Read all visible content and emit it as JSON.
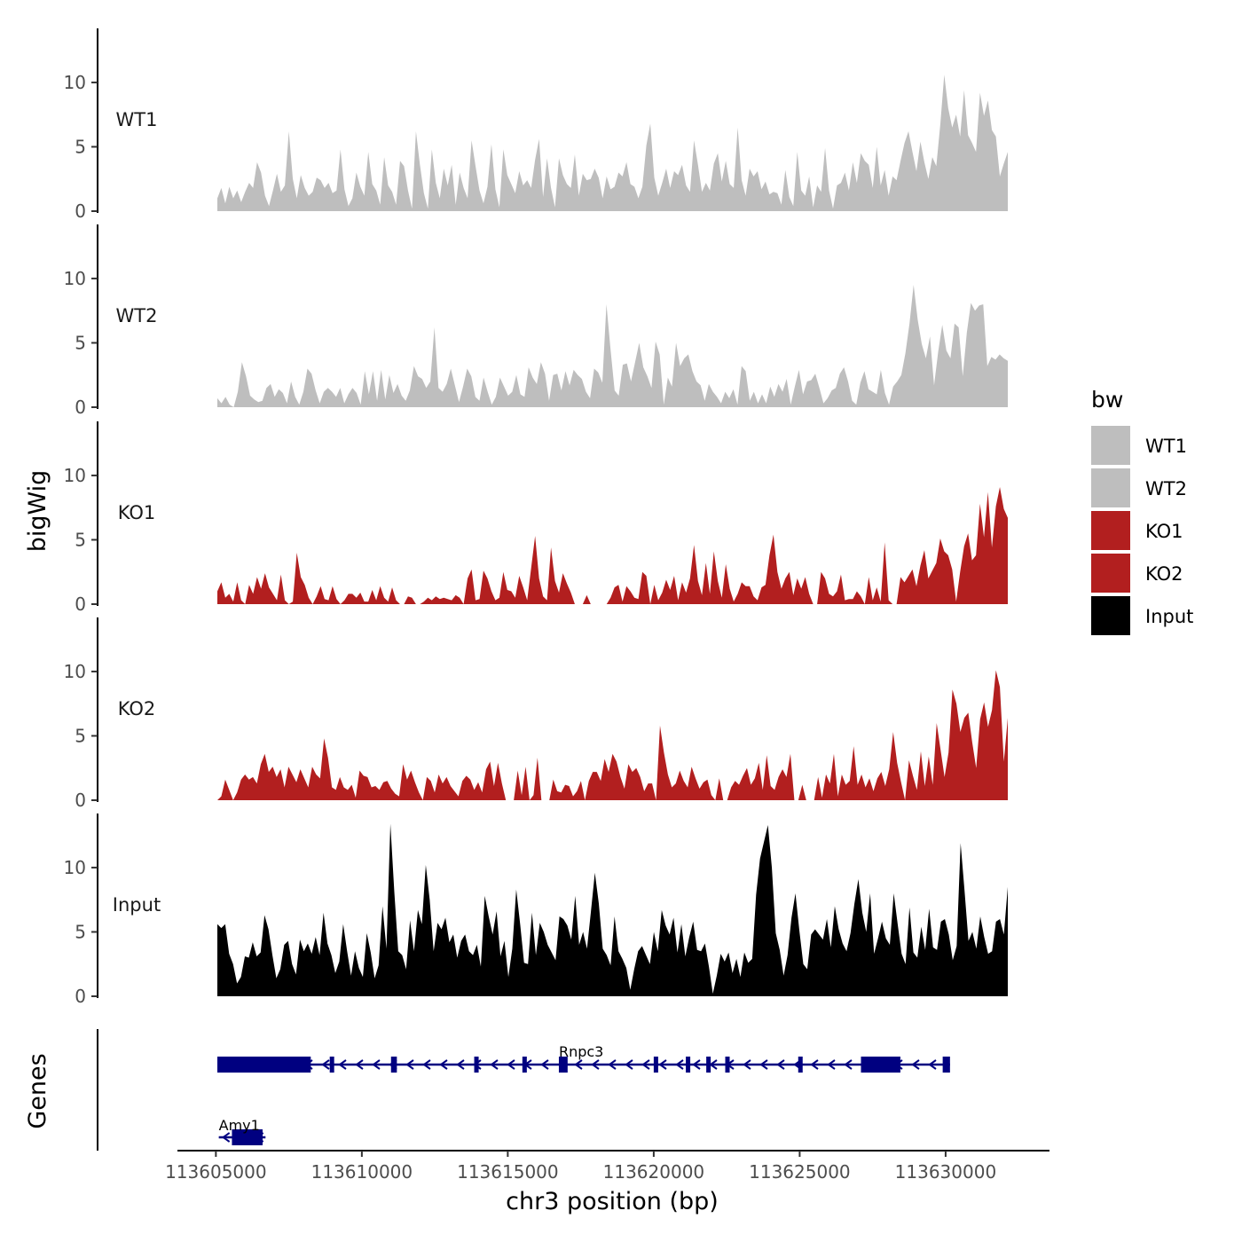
{
  "chart_data": {
    "type": "area",
    "title": "",
    "xlabel": "chr3 position (bp)",
    "ylabel": "bigWig",
    "genes_label": "Genes",
    "xlim": [
      113601700,
      113635100
    ],
    "x_ticks": [
      113605000,
      113610000,
      113615000,
      113620000,
      113625000,
      113630000
    ],
    "x_tick_labels": [
      "113605000",
      "113610000",
      "113615000",
      "113620000",
      "113625000",
      "113630000"
    ],
    "ylim": [
      0,
      14.2
    ],
    "y_ticks": [
      0,
      5,
      10
    ],
    "y_tick_labels": [
      "0",
      "5",
      "10"
    ],
    "x_range": [
      113605050,
      113632130
    ],
    "legend": {
      "title": "bw",
      "position": "right",
      "entries": [
        {
          "label": "WT1",
          "color": "#bebebe"
        },
        {
          "label": "WT2",
          "color": "#bebebe"
        },
        {
          "label": "KO1",
          "color": "#b21f1f"
        },
        {
          "label": "KO2",
          "color": "#b21f1f"
        },
        {
          "label": "Input",
          "color": "#000000"
        }
      ]
    },
    "series": [
      {
        "name": "WT1",
        "color": "#bebebe",
        "values": [
          1.0,
          1.8,
          0.6,
          1.9,
          1.0,
          1.6,
          0.7,
          1.5,
          2.2,
          1.8,
          3.8,
          3.0,
          1.2,
          0.4,
          1.6,
          2.9,
          1.5,
          2.0,
          6.2,
          2.5,
          1.0,
          2.8,
          1.8,
          1.2,
          1.5,
          2.6,
          2.4,
          1.8,
          2.2,
          1.4,
          1.6,
          4.8,
          1.7,
          0.4,
          1.0,
          3.0,
          1.9,
          1.2,
          4.6,
          2.1,
          1.6,
          0.5,
          4.2,
          2.0,
          1.5,
          0.5,
          3.9,
          3.5,
          1.6,
          0.2,
          6.2,
          3.6,
          1.4,
          0.2,
          4.8,
          2.2,
          1.0,
          3.3,
          2.0,
          3.6,
          0.5,
          3.0,
          1.8,
          1.0,
          5.5,
          3.5,
          1.6,
          0.6,
          1.9,
          5.2,
          1.7,
          0.3,
          4.8,
          2.8,
          2.1,
          1.4,
          3.1,
          2.0,
          2.4,
          1.8,
          4.0,
          5.6,
          1.1,
          4.1,
          1.8,
          0.3,
          4.1,
          2.8,
          2.1,
          1.8,
          4.4,
          1.2,
          2.9,
          2.4,
          2.5,
          3.3,
          2.6,
          1.0,
          2.7,
          1.7,
          1.9,
          3.0,
          2.7,
          3.8,
          2.1,
          1.9,
          1.0,
          1.9,
          5.1,
          6.8,
          2.6,
          1.2,
          2.2,
          3.3,
          1.8,
          3.1,
          2.8,
          3.6,
          2.0,
          1.5,
          5.5,
          3.6,
          1.5,
          2.2,
          1.6,
          3.7,
          4.5,
          2.3,
          3.9,
          2.1,
          1.8,
          6.5,
          2.4,
          1.2,
          3.3,
          2.7,
          3.1,
          1.7,
          2.3,
          1.3,
          1.5,
          1.4,
          0.5,
          3.2,
          1.1,
          0.4,
          4.6,
          1.6,
          1.2,
          2.7,
          0.3,
          2.0,
          1.5,
          4.9,
          1.6,
          0.2,
          2.0,
          2.2,
          3.0,
          1.6,
          3.8,
          2.2,
          4.5,
          3.9,
          3.6,
          1.8,
          5.0,
          2.0,
          3.2,
          1.2,
          2.7,
          2.4,
          3.9,
          5.3,
          6.2,
          4.6,
          3.1,
          5.4,
          3.8,
          2.5,
          4.2,
          3.5,
          6.7,
          10.6,
          8.0,
          6.5,
          7.5,
          5.8,
          9.4,
          5.9,
          5.3,
          4.6,
          9.2,
          7.4,
          8.6,
          6.3,
          5.8,
          2.7,
          3.7,
          4.6
        ]
      },
      {
        "name": "WT2",
        "color": "#bebebe",
        "values": [
          0.7,
          0.3,
          0.8,
          0.2,
          0.0,
          1.2,
          3.5,
          2.4,
          0.9,
          0.6,
          0.4,
          0.5,
          1.5,
          1.8,
          0.8,
          1.4,
          1.1,
          0.3,
          2.0,
          0.8,
          0.2,
          1.2,
          3.0,
          2.6,
          1.3,
          0.3,
          1.2,
          1.5,
          1.2,
          0.8,
          1.5,
          0.3,
          1.0,
          1.5,
          1.1,
          0.2,
          2.8,
          1.0,
          2.8,
          0.5,
          2.9,
          0.6,
          2.5,
          1.1,
          1.8,
          0.9,
          0.5,
          1.3,
          3.2,
          2.4,
          2.2,
          1.5,
          2.0,
          6.2,
          1.5,
          1.2,
          1.8,
          3.0,
          1.7,
          0.4,
          1.6,
          3.0,
          2.4,
          0.8,
          0.5,
          2.3,
          1.2,
          0.2,
          0.8,
          2.3,
          1.6,
          0.9,
          1.2,
          2.5,
          1.0,
          0.8,
          3.1,
          2.3,
          1.8,
          3.5,
          2.6,
          0.5,
          2.5,
          2.6,
          1.3,
          2.8,
          1.7,
          2.9,
          2.5,
          2.2,
          1.2,
          0.7,
          3.0,
          2.7,
          1.9,
          8.0,
          4.5,
          1.3,
          0.9,
          3.3,
          3.4,
          2.0,
          3.5,
          5.0,
          3.1,
          2.4,
          1.5,
          5.1,
          4.1,
          0.2,
          2.3,
          1.6,
          5.0,
          3.2,
          3.8,
          4.1,
          2.8,
          2.0,
          1.7,
          0.5,
          1.8,
          1.2,
          0.8,
          0.3,
          1.2,
          0.7,
          1.4,
          0.2,
          3.2,
          2.8,
          0.5,
          1.2,
          0.3,
          1.0,
          0.3,
          1.6,
          0.8,
          1.8,
          1.2,
          2.2,
          0.2,
          1.6,
          2.9,
          1.0,
          2.0,
          2.1,
          2.6,
          1.5,
          0.3,
          0.7,
          1.3,
          1.5,
          2.6,
          3.1,
          2.0,
          0.5,
          0.2,
          1.9,
          2.8,
          1.4,
          1.2,
          1.0,
          2.9,
          1.1,
          0.2,
          1.6,
          2.0,
          2.5,
          4.2,
          6.5,
          9.5,
          6.8,
          4.9,
          3.8,
          5.5,
          1.7,
          4.3,
          6.4,
          4.4,
          3.8,
          6.5,
          6.2,
          2.4,
          5.8,
          8.1,
          7.5,
          7.9,
          8.0,
          3.2,
          3.9,
          3.7,
          4.1,
          3.8,
          3.6
        ]
      },
      {
        "name": "KO1",
        "color": "#b21f1f",
        "values": [
          1.0,
          1.7,
          0.5,
          0.8,
          0.2,
          1.7,
          0.3,
          0.0,
          1.5,
          0.8,
          2.1,
          1.2,
          2.4,
          1.3,
          0.8,
          0.3,
          2.3,
          0.3,
          0.0,
          0.2,
          4.0,
          2.1,
          1.5,
          0.5,
          0.0,
          0.6,
          1.4,
          0.4,
          0.3,
          1.4,
          0.4,
          0.0,
          0.3,
          0.8,
          0.8,
          0.5,
          0.9,
          0.2,
          0.2,
          1.1,
          0.3,
          1.4,
          0.5,
          0.2,
          1.3,
          0.3,
          0.0,
          0.0,
          0.6,
          0.5,
          0.0,
          0.0,
          0.2,
          0.5,
          0.3,
          0.6,
          0.4,
          0.5,
          0.4,
          0.3,
          0.7,
          0.5,
          0.0,
          2.0,
          2.7,
          0.3,
          0.4,
          2.6,
          2.0,
          1.0,
          0.3,
          0.5,
          2.5,
          1.1,
          1.0,
          0.5,
          2.2,
          1.3,
          0.3,
          2.8,
          5.3,
          2.0,
          0.6,
          0.3,
          4.4,
          1.8,
          0.9,
          2.4,
          1.6,
          0.9,
          0.0,
          0.0,
          0.0,
          0.7,
          0.0,
          0.0,
          0.0,
          0.0,
          0.0,
          0.5,
          1.3,
          1.5,
          0.2,
          1.4,
          1.0,
          0.5,
          0.4,
          2.5,
          2.2,
          0.0,
          1.5,
          0.3,
          0.9,
          1.9,
          1.1,
          2.2,
          0.3,
          1.7,
          0.9,
          2.0,
          4.6,
          1.8,
          0.7,
          3.2,
          0.8,
          4.1,
          1.8,
          0.5,
          3.1,
          1.2,
          0.2,
          0.8,
          1.7,
          1.4,
          1.4,
          0.6,
          0.3,
          1.3,
          1.5,
          3.8,
          5.4,
          2.5,
          1.2,
          2.0,
          2.5,
          0.7,
          2.0,
          1.2,
          2.1,
          0.8,
          0.0,
          0.0,
          2.5,
          2.0,
          0.8,
          0.6,
          1.0,
          2.3,
          0.3,
          0.4,
          0.4,
          1.0,
          0.6,
          0.0,
          2.1,
          0.3,
          1.3,
          0.2,
          4.8,
          0.3,
          0.0,
          0.0,
          2.1,
          1.7,
          2.2,
          2.7,
          1.4,
          3.0,
          4.2,
          2.0,
          2.6,
          3.2,
          5.1,
          4.1,
          3.8,
          2.7,
          0.2,
          2.5,
          4.5,
          5.5,
          3.4,
          3.8,
          7.8,
          5.2,
          8.7,
          4.4,
          7.6,
          9.1,
          7.4,
          6.7
        ]
      },
      {
        "name": "KO2",
        "color": "#b21f1f",
        "values": [
          0.0,
          0.3,
          1.6,
          0.8,
          0.0,
          0.6,
          1.6,
          2.0,
          1.6,
          1.8,
          1.3,
          2.8,
          3.6,
          2.2,
          2.6,
          1.8,
          2.4,
          1.0,
          2.6,
          2.0,
          1.4,
          2.4,
          1.7,
          1.0,
          2.6,
          2.0,
          1.7,
          4.8,
          3.3,
          1.0,
          0.8,
          1.8,
          1.0,
          0.8,
          1.2,
          0.2,
          2.3,
          1.9,
          1.8,
          1.0,
          1.1,
          0.8,
          1.4,
          1.5,
          0.9,
          0.5,
          0.3,
          2.8,
          1.6,
          2.3,
          1.4,
          0.6,
          0.0,
          1.8,
          1.5,
          0.6,
          2.0,
          1.3,
          1.8,
          1.1,
          0.7,
          0.3,
          1.5,
          1.9,
          1.6,
          0.8,
          1.4,
          0.6,
          2.4,
          3.0,
          1.1,
          2.9,
          1.3,
          0.0,
          0.0,
          0.0,
          2.3,
          0.4,
          2.6,
          0.0,
          0.4,
          3.3,
          0.0,
          0.0,
          0.0,
          1.6,
          0.7,
          0.6,
          1.2,
          1.1,
          0.3,
          0.7,
          1.5,
          0.0,
          1.5,
          2.2,
          2.2,
          1.5,
          3.2,
          2.2,
          3.6,
          3.0,
          1.8,
          0.9,
          2.8,
          2.2,
          2.5,
          1.8,
          0.7,
          1.3,
          1.3,
          0.0,
          5.8,
          3.7,
          2.0,
          1.0,
          1.3,
          2.3,
          1.5,
          1.0,
          2.6,
          1.7,
          0.9,
          1.4,
          1.6,
          0.4,
          0.0,
          1.7,
          0.0,
          0.0,
          1.0,
          1.5,
          1.2,
          1.9,
          2.5,
          1.2,
          1.7,
          2.9,
          0.8,
          3.5,
          1.1,
          0.8,
          1.8,
          2.4,
          1.8,
          3.6,
          0.0,
          0.0,
          1.2,
          0.0,
          0.0,
          0.0,
          1.8,
          0.2,
          2.0,
          1.3,
          3.6,
          0.3,
          2.0,
          1.2,
          1.5,
          4.2,
          1.2,
          2.0,
          1.0,
          1.7,
          0.7,
          1.7,
          2.2,
          1.1,
          2.4,
          5.3,
          2.9,
          1.4,
          0.0,
          3.1,
          1.9,
          0.8,
          3.8,
          1.1,
          3.4,
          1.2,
          6.0,
          3.9,
          1.8,
          3.7,
          8.6,
          7.5,
          5.3,
          6.4,
          6.8,
          4.5,
          2.5,
          6.3,
          7.6,
          5.7,
          7.0,
          10.1,
          8.8,
          3.0,
          6.4
        ]
      },
      {
        "name": "Input",
        "color": "#000000",
        "values": [
          5.6,
          5.3,
          5.6,
          3.3,
          2.5,
          1.0,
          1.5,
          3.1,
          3.0,
          4.2,
          3.1,
          3.4,
          6.3,
          5.2,
          3.2,
          1.4,
          2.1,
          4.0,
          4.3,
          2.5,
          1.7,
          4.4,
          3.5,
          4.1,
          3.3,
          4.6,
          3.2,
          6.5,
          4.1,
          3.2,
          1.8,
          2.7,
          5.6,
          3.5,
          1.6,
          3.5,
          2.2,
          1.5,
          4.9,
          3.4,
          1.4,
          2.4,
          7.0,
          3.7,
          13.4,
          8.1,
          3.5,
          3.2,
          2.1,
          5.9,
          3.5,
          6.7,
          5.6,
          10.2,
          7.5,
          3.5,
          5.7,
          5.2,
          6.1,
          4.2,
          4.8,
          3.0,
          4.3,
          4.8,
          3.5,
          3.2,
          4.0,
          2.3,
          7.8,
          6.2,
          4.8,
          6.6,
          3.1,
          4.3,
          1.5,
          3.7,
          8.3,
          5.6,
          2.6,
          2.5,
          6.5,
          3.2,
          5.7,
          5.0,
          4.0,
          3.4,
          2.8,
          6.2,
          6.0,
          5.5,
          4.4,
          7.8,
          4.0,
          5.0,
          3.7,
          6.6,
          9.6,
          7.2,
          3.7,
          3.2,
          2.4,
          6.2,
          3.5,
          2.9,
          2.2,
          0.5,
          2.1,
          3.5,
          3.9,
          3.2,
          2.5,
          5.0,
          3.5,
          6.7,
          5.5,
          4.8,
          6.1,
          3.4,
          5.6,
          3.1,
          4.6,
          5.8,
          3.6,
          3.5,
          4.1,
          2.3,
          0.2,
          1.6,
          3.3,
          2.7,
          3.4,
          1.8,
          2.9,
          1.5,
          3.4,
          2.6,
          2.9,
          7.9,
          10.7,
          12.0,
          13.3,
          10.0,
          4.9,
          3.6,
          1.6,
          3.2,
          6.1,
          8.0,
          5.1,
          2.5,
          2.1,
          4.8,
          5.2,
          4.8,
          4.4,
          6.0,
          3.8,
          7.0,
          5.2,
          4.1,
          3.5,
          4.9,
          7.2,
          9.1,
          6.5,
          5.0,
          8.0,
          3.3,
          4.5,
          5.8,
          4.5,
          4.0,
          8.0,
          5.6,
          3.3,
          2.5,
          6.9,
          3.4,
          3.0,
          5.4,
          3.6,
          6.8,
          3.8,
          3.6,
          5.8,
          6.0,
          4.8,
          2.8,
          3.9,
          11.9,
          8.2,
          4.3,
          5.0,
          3.7,
          6.2,
          4.6,
          3.3,
          3.5,
          5.8,
          6.0,
          4.8,
          8.5
        ]
      }
    ],
    "gene_track": {
      "strand_arrow": "<",
      "color": "#000080",
      "genes": [
        {
          "name": "Rnpc3",
          "start": 113605050,
          "end": 113630150,
          "exons": [
            [
              113605050,
              113608250
            ],
            [
              113608900,
              113609050
            ],
            [
              113611000,
              113611200
            ],
            [
              113613850,
              113613950
            ],
            [
              113615500,
              113615600
            ],
            [
              113616750,
              113617050
            ],
            [
              113620000,
              113620100
            ],
            [
              113621100,
              113621250
            ],
            [
              113621800,
              113621950
            ],
            [
              113622450,
              113622550
            ],
            [
              113624950,
              113625050
            ],
            [
              113627100,
              113628450
            ],
            [
              113629900,
              113630150
            ]
          ]
        },
        {
          "name": "Amy1",
          "start": 113605100,
          "end": 113606700,
          "exons": [
            [
              113605550,
              113606600
            ]
          ]
        }
      ]
    }
  }
}
